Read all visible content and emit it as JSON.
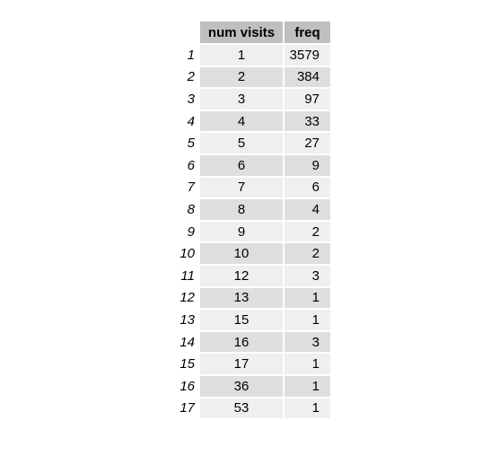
{
  "table": {
    "columns": [
      "num visits",
      "freq"
    ],
    "rows": [
      {
        "index": "1",
        "num_visits": "1",
        "freq": "3579"
      },
      {
        "index": "2",
        "num_visits": "2",
        "freq": "384"
      },
      {
        "index": "3",
        "num_visits": "3",
        "freq": "97"
      },
      {
        "index": "4",
        "num_visits": "4",
        "freq": "33"
      },
      {
        "index": "5",
        "num_visits": "5",
        "freq": "27"
      },
      {
        "index": "6",
        "num_visits": "6",
        "freq": "9"
      },
      {
        "index": "7",
        "num_visits": "7",
        "freq": "6"
      },
      {
        "index": "8",
        "num_visits": "8",
        "freq": "4"
      },
      {
        "index": "9",
        "num_visits": "9",
        "freq": "2"
      },
      {
        "index": "10",
        "num_visits": "10",
        "freq": "2"
      },
      {
        "index": "11",
        "num_visits": "12",
        "freq": "3"
      },
      {
        "index": "12",
        "num_visits": "13",
        "freq": "1"
      },
      {
        "index": "13",
        "num_visits": "15",
        "freq": "1"
      },
      {
        "index": "14",
        "num_visits": "16",
        "freq": "3"
      },
      {
        "index": "15",
        "num_visits": "17",
        "freq": "1"
      },
      {
        "index": "16",
        "num_visits": "36",
        "freq": "1"
      },
      {
        "index": "17",
        "num_visits": "53",
        "freq": "1"
      }
    ]
  },
  "colors": {
    "header_bg": "#bfbfbf",
    "row_light": "#efefef",
    "row_dark": "#dedede"
  }
}
